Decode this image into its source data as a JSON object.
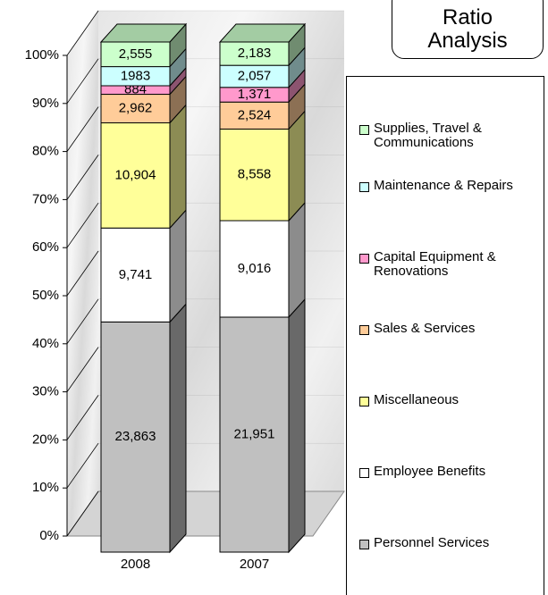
{
  "chart_data": {
    "type": "bar",
    "stacked": "percent",
    "title": "Ratio Analysis",
    "categories": [
      "2008",
      "2007"
    ],
    "series": [
      {
        "name": "Personnel Services",
        "color": "#c0c0c0",
        "values": [
          23863,
          21951
        ],
        "value_labels": [
          "23,863",
          "21,951"
        ]
      },
      {
        "name": "Employee Benefits",
        "color": "#ffffff",
        "values": [
          9741,
          9016
        ],
        "value_labels": [
          "9,741",
          "9,016"
        ]
      },
      {
        "name": "Miscellaneous",
        "color": "#ffff99",
        "values": [
          10904,
          8558
        ],
        "value_labels": [
          "10,904",
          "8,558"
        ]
      },
      {
        "name": "Sales & Services",
        "color": "#ffcc99",
        "values": [
          2962,
          2524
        ],
        "value_labels": [
          "2,962",
          "2,524"
        ]
      },
      {
        "name": "Capital Equipment & Renovations",
        "color": "#ff99cc",
        "values": [
          884,
          1371
        ],
        "value_labels": [
          "884",
          "1,371"
        ]
      },
      {
        "name": "Maintenance & Repairs",
        "color": "#ccffff",
        "values": [
          1983,
          2057
        ],
        "value_labels": [
          "1983",
          "2,057"
        ]
      },
      {
        "name": "Supplies, Travel & Communications",
        "color": "#ccffcc",
        "values": [
          2555,
          2183
        ],
        "value_labels": [
          "2,555",
          "2,183"
        ]
      }
    ],
    "ylim": [
      0,
      100
    ],
    "yticks": [
      {
        "value": 0,
        "label": "0%"
      },
      {
        "value": 10,
        "label": "10%"
      },
      {
        "value": 20,
        "label": "20%"
      },
      {
        "value": 30,
        "label": "30%"
      },
      {
        "value": 40,
        "label": "40%"
      },
      {
        "value": 50,
        "label": "50%"
      },
      {
        "value": 60,
        "label": "60%"
      },
      {
        "value": 70,
        "label": "70%"
      },
      {
        "value": 80,
        "label": "80%"
      },
      {
        "value": 90,
        "label": "90%"
      },
      {
        "value": 100,
        "label": "100%"
      }
    ],
    "grid": true,
    "legend": "right"
  }
}
